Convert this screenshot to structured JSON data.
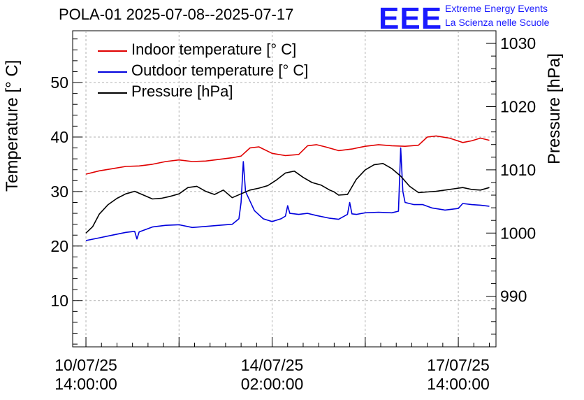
{
  "title": "POLA-01 2025-07-08--2025-07-17",
  "logo": {
    "text": "EEE",
    "line1": "Extreme Energy Events",
    "line2": "La Scienza nelle Scuole",
    "color": "#1a1aff"
  },
  "chart_data": {
    "type": "line",
    "ylabel_left": "Temperature [° C]",
    "ylabel_right": "Pressure [hPa]",
    "ylim_left": [
      1.5,
      59.5
    ],
    "ylim_right": [
      982,
      1032
    ],
    "left_ticks": [
      10,
      20,
      30,
      40,
      50
    ],
    "right_ticks": [
      990,
      1000,
      1010,
      1020,
      1030
    ],
    "x_range_hours": [
      -6,
      185
    ],
    "x_ticks": [
      {
        "hours": 0,
        "date": "10/07/25",
        "time": "14:00:00"
      },
      {
        "hours": 84,
        "date": "14/07/25",
        "time": "02:00:00"
      },
      {
        "hours": 168,
        "date": "17/07/25",
        "time": "14:00:00"
      }
    ],
    "grid": true,
    "legend_position": "top-left",
    "series": [
      {
        "name": "Indoor temperature [° C]",
        "axis": "left",
        "color": "#e00000",
        "x": [
          0,
          6,
          12,
          18,
          24,
          30,
          36,
          42,
          48,
          54,
          60,
          66,
          70,
          74,
          78,
          84,
          90,
          96,
          100,
          104,
          108,
          114,
          120,
          126,
          132,
          138,
          144,
          150,
          154,
          158,
          164,
          170,
          174,
          178,
          182
        ],
        "y": [
          33.2,
          33.8,
          34.2,
          34.6,
          34.7,
          35.0,
          35.5,
          35.8,
          35.5,
          35.6,
          35.9,
          36.2,
          36.5,
          38.0,
          38.2,
          37.0,
          36.6,
          36.8,
          38.4,
          38.6,
          38.2,
          37.5,
          37.8,
          38.3,
          38.6,
          38.4,
          38.3,
          38.5,
          40.0,
          40.2,
          39.8,
          39.0,
          39.3,
          39.8,
          39.4
        ]
      },
      {
        "name": "Outdoor temperature [° C]",
        "axis": "left",
        "color": "#0000dd",
        "x": [
          0,
          6,
          12,
          18,
          22,
          23,
          24,
          30,
          36,
          42,
          48,
          54,
          60,
          66,
          69,
          70,
          71,
          72,
          76,
          80,
          84,
          88,
          90,
          91,
          92,
          96,
          100,
          104,
          110,
          114,
          118,
          119,
          120,
          122,
          126,
          132,
          138,
          141,
          142,
          143,
          144,
          148,
          152,
          156,
          162,
          168,
          170,
          174,
          178,
          182
        ],
        "y": [
          21.0,
          21.5,
          22.0,
          22.5,
          22.7,
          21.3,
          22.6,
          23.5,
          23.8,
          23.9,
          23.4,
          23.6,
          23.8,
          24.0,
          25.0,
          28.0,
          35.5,
          30.0,
          26.5,
          25.0,
          24.5,
          25.0,
          25.5,
          27.4,
          26.0,
          25.8,
          26.0,
          25.6,
          25.1,
          24.9,
          25.8,
          28.0,
          25.9,
          25.8,
          26.1,
          26.2,
          26.1,
          26.4,
          38.0,
          30.0,
          28.0,
          27.6,
          27.6,
          27.0,
          26.6,
          26.9,
          27.8,
          27.6,
          27.5,
          27.3
        ]
      },
      {
        "name": "Pressure [hPa]",
        "axis": "right",
        "color": "#000000",
        "x": [
          0,
          3,
          6,
          10,
          14,
          18,
          22,
          26,
          30,
          34,
          38,
          42,
          46,
          50,
          54,
          58,
          62,
          66,
          70,
          74,
          78,
          82,
          86,
          90,
          94,
          98,
          102,
          106,
          110,
          112,
          114,
          118,
          122,
          126,
          130,
          134,
          138,
          142,
          146,
          150,
          154,
          158,
          162,
          166,
          170,
          174,
          178,
          182
        ],
        "y": [
          1000.0,
          1001.0,
          1003.0,
          1004.5,
          1005.5,
          1006.2,
          1006.6,
          1006.0,
          1005.4,
          1005.5,
          1005.8,
          1006.2,
          1007.2,
          1007.4,
          1006.6,
          1006.1,
          1006.8,
          1005.6,
          1006.2,
          1006.8,
          1007.1,
          1007.5,
          1008.4,
          1009.5,
          1009.8,
          1008.8,
          1008.0,
          1007.6,
          1006.8,
          1006.5,
          1006.0,
          1006.1,
          1008.5,
          1010.0,
          1010.8,
          1011.0,
          1010.2,
          1009.0,
          1007.4,
          1006.4,
          1006.5,
          1006.6,
          1006.8,
          1007.0,
          1007.2,
          1006.9,
          1006.8,
          1007.2
        ]
      }
    ]
  }
}
